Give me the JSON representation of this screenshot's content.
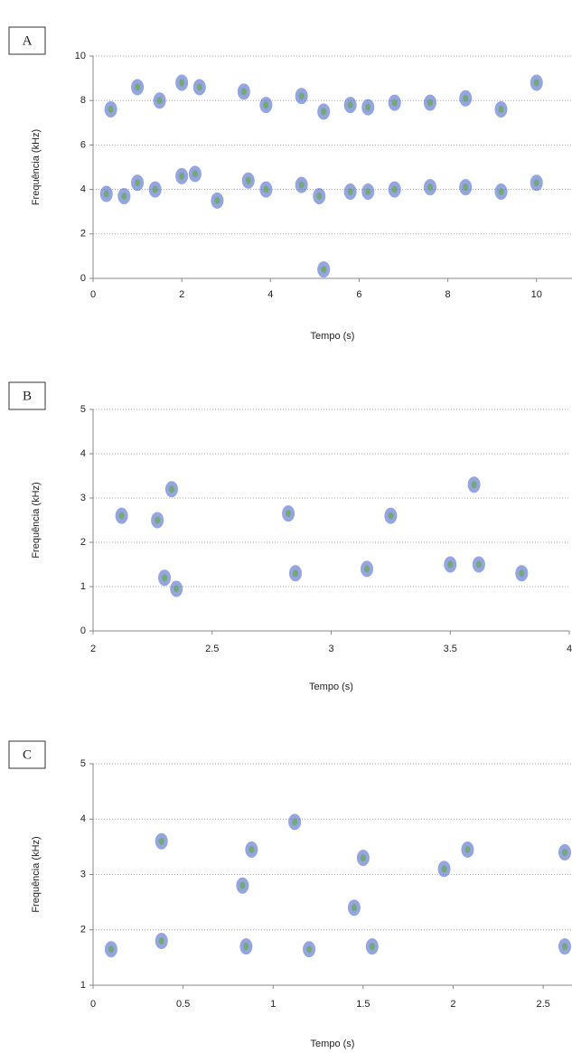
{
  "chart_data": [
    {
      "type": "spectrogram",
      "panel_label": "A",
      "xlabel": "Tempo (s)",
      "ylabel": "Frequência (kHz)",
      "xlim": [
        0,
        10.8
      ],
      "ylim": [
        0,
        10
      ],
      "xticks": [
        0,
        2,
        4,
        6,
        8,
        10
      ],
      "yticks": [
        0,
        2,
        4,
        6,
        8,
        10
      ],
      "grid": true,
      "color": "#3d5bc4",
      "x": [
        0.3,
        0.7,
        1.0,
        1.4,
        2.0,
        2.3,
        2.8,
        3.5,
        3.9,
        4.7,
        5.1,
        5.8,
        6.2,
        6.8,
        7.6,
        8.4,
        9.2,
        10.0,
        0.4,
        1.0,
        1.5,
        2.0,
        2.4,
        3.4,
        3.9,
        4.7,
        5.2,
        5.8,
        6.2,
        6.8,
        7.6,
        8.4,
        9.2,
        10.0,
        5.2
      ],
      "y": [
        3.8,
        3.7,
        4.3,
        4.0,
        4.6,
        4.7,
        3.5,
        4.4,
        4.0,
        4.2,
        3.7,
        3.9,
        3.9,
        4.0,
        4.1,
        4.1,
        3.9,
        4.3,
        7.6,
        8.6,
        8.0,
        8.8,
        8.6,
        8.4,
        7.8,
        8.2,
        7.5,
        7.8,
        7.7,
        7.9,
        7.9,
        8.1,
        7.6,
        8.8,
        0.4
      ]
    },
    {
      "type": "spectrogram",
      "panel_label": "B",
      "xlabel": "Tempo (s)",
      "ylabel": "Frequência (kHz)",
      "xlim": [
        2,
        4
      ],
      "ylim": [
        0,
        5
      ],
      "xticks": [
        2,
        2.5,
        3,
        3.5,
        4
      ],
      "yticks": [
        0,
        1,
        2,
        3,
        4,
        5
      ],
      "grid": true,
      "color": "#3d5bc4",
      "x": [
        2.12,
        2.27,
        2.3,
        2.35,
        2.33,
        2.82,
        2.85,
        3.15,
        3.5,
        3.62,
        3.6,
        3.8,
        3.25
      ],
      "y": [
        2.6,
        2.5,
        1.2,
        0.95,
        3.2,
        2.65,
        1.3,
        1.4,
        1.5,
        1.5,
        3.3,
        1.3,
        2.6
      ]
    },
    {
      "type": "spectrogram",
      "panel_label": "C",
      "xlabel": "Tempo (s)",
      "ylabel": "Frequência (kHz)",
      "xlim": [
        0,
        2.66
      ],
      "ylim": [
        1,
        5
      ],
      "xticks": [
        0,
        0.5,
        1,
        1.5,
        2,
        2.5
      ],
      "yticks": [
        1,
        2,
        3,
        4,
        5
      ],
      "grid": true,
      "color": "#3d5bc4",
      "x": [
        0.1,
        0.38,
        0.38,
        0.85,
        0.83,
        0.88,
        1.12,
        1.2,
        1.45,
        1.5,
        1.55,
        1.95,
        2.08,
        2.62,
        2.62
      ],
      "y": [
        1.65,
        1.8,
        3.6,
        1.7,
        2.8,
        3.45,
        3.95,
        1.65,
        2.4,
        3.3,
        1.7,
        3.1,
        3.45,
        3.4,
        1.7
      ]
    }
  ]
}
